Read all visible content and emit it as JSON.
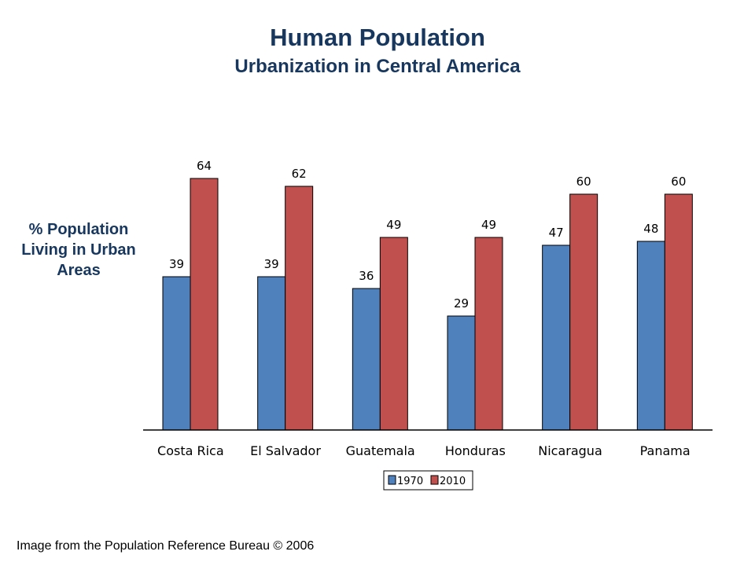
{
  "page": {
    "title": "Human Population",
    "subtitle": "Urbanization in Central America",
    "ylabel_lines": [
      "% Population",
      "Living in Urban",
      "Areas"
    ],
    "footer": "Image from the Population Reference Bureau © 2006"
  },
  "chart_data": {
    "type": "bar",
    "title": "Human Population",
    "subtitle": "Urbanization in Central America",
    "ylabel": "% Population Living in Urban Areas",
    "xlabel": "",
    "categories": [
      "Costa Rica",
      "El Salvador",
      "Guatemala",
      "Honduras",
      "Nicaragua",
      "Panama"
    ],
    "series": [
      {
        "name": "1970",
        "color": "#4f81bd",
        "values": [
          39,
          39,
          36,
          29,
          47,
          48
        ]
      },
      {
        "name": "2010",
        "color": "#c0504d",
        "values": [
          64,
          62,
          49,
          49,
          60,
          60
        ]
      }
    ],
    "ylim": [
      0,
      100
    ],
    "grid": false,
    "data_labels": true,
    "legend_position": "bottom"
  }
}
